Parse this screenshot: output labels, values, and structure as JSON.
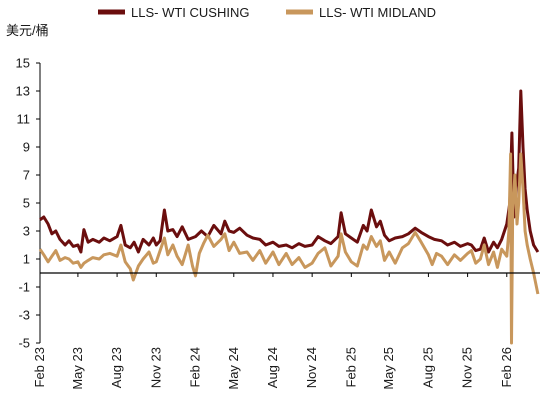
{
  "chart_data": {
    "type": "line",
    "ylabel": "美元/桶",
    "ylim": [
      -5,
      15
    ],
    "yticks": [
      -5,
      -3,
      -1,
      1,
      3,
      5,
      7,
      9,
      11,
      13,
      15
    ],
    "x_start": "2023-02-01",
    "x_end": "2026-04-20",
    "xticks": [
      {
        "label": "Feb 23",
        "date": "2023-02-01"
      },
      {
        "label": "May 23",
        "date": "2023-05-01"
      },
      {
        "label": "Aug 23",
        "date": "2023-08-01"
      },
      {
        "label": "Nov 23",
        "date": "2023-11-01"
      },
      {
        "label": "Feb 24",
        "date": "2024-02-01"
      },
      {
        "label": "May 24",
        "date": "2024-05-01"
      },
      {
        "label": "Aug 24",
        "date": "2024-08-01"
      },
      {
        "label": "Nov 24",
        "date": "2024-11-01"
      },
      {
        "label": "Feb 25",
        "date": "2025-02-01"
      },
      {
        "label": "May 25",
        "date": "2025-05-01"
      },
      {
        "label": "Aug 25",
        "date": "2025-08-01"
      },
      {
        "label": "Nov 25",
        "date": "2025-11-01"
      },
      {
        "label": "Feb 26",
        "date": "2026-02-01"
      }
    ],
    "legend_position": "top",
    "grid": false,
    "series": [
      {
        "name": "LLS- WTI CUSHING",
        "color": "#6b0e0e",
        "points": [
          [
            "2023-02-01",
            3.8
          ],
          [
            "2023-02-10",
            4.0
          ],
          [
            "2023-02-20",
            3.5
          ],
          [
            "2023-03-01",
            2.8
          ],
          [
            "2023-03-10",
            3.0
          ],
          [
            "2023-03-20",
            2.4
          ],
          [
            "2023-04-01",
            2.0
          ],
          [
            "2023-04-10",
            2.3
          ],
          [
            "2023-04-20",
            1.9
          ],
          [
            "2023-05-01",
            2.0
          ],
          [
            "2023-05-08",
            1.5
          ],
          [
            "2023-05-15",
            3.1
          ],
          [
            "2023-05-25",
            2.2
          ],
          [
            "2023-06-05",
            2.4
          ],
          [
            "2023-06-20",
            2.2
          ],
          [
            "2023-07-01",
            2.5
          ],
          [
            "2023-07-15",
            2.3
          ],
          [
            "2023-08-01",
            2.6
          ],
          [
            "2023-08-10",
            3.4
          ],
          [
            "2023-08-20",
            2.0
          ],
          [
            "2023-09-01",
            1.8
          ],
          [
            "2023-09-10",
            2.2
          ],
          [
            "2023-09-20",
            1.5
          ],
          [
            "2023-10-01",
            2.4
          ],
          [
            "2023-10-15",
            2.0
          ],
          [
            "2023-10-25",
            2.5
          ],
          [
            "2023-11-01",
            2.0
          ],
          [
            "2023-11-10",
            2.3
          ],
          [
            "2023-11-20",
            4.5
          ],
          [
            "2023-11-28",
            3.0
          ],
          [
            "2023-12-10",
            3.1
          ],
          [
            "2023-12-20",
            2.6
          ],
          [
            "2024-01-01",
            3.3
          ],
          [
            "2024-01-15",
            2.4
          ],
          [
            "2024-02-01",
            2.6
          ],
          [
            "2024-02-15",
            3.0
          ],
          [
            "2024-03-01",
            2.6
          ],
          [
            "2024-03-15",
            3.4
          ],
          [
            "2024-04-01",
            2.8
          ],
          [
            "2024-04-10",
            3.7
          ],
          [
            "2024-04-20",
            3.0
          ],
          [
            "2024-05-01",
            2.9
          ],
          [
            "2024-05-15",
            3.2
          ],
          [
            "2024-06-01",
            2.7
          ],
          [
            "2024-06-15",
            2.5
          ],
          [
            "2024-07-01",
            2.4
          ],
          [
            "2024-07-15",
            2.0
          ],
          [
            "2024-08-01",
            2.2
          ],
          [
            "2024-08-15",
            1.9
          ],
          [
            "2024-09-01",
            2.0
          ],
          [
            "2024-09-15",
            1.8
          ],
          [
            "2024-10-01",
            2.1
          ],
          [
            "2024-10-15",
            1.9
          ],
          [
            "2024-11-01",
            2.0
          ],
          [
            "2024-11-15",
            2.6
          ],
          [
            "2024-12-01",
            2.3
          ],
          [
            "2024-12-15",
            2.1
          ],
          [
            "2025-01-01",
            2.6
          ],
          [
            "2025-01-08",
            4.3
          ],
          [
            "2025-01-18",
            2.8
          ],
          [
            "2025-02-01",
            2.5
          ],
          [
            "2025-02-15",
            2.2
          ],
          [
            "2025-03-01",
            3.4
          ],
          [
            "2025-03-10",
            3.0
          ],
          [
            "2025-03-20",
            4.5
          ],
          [
            "2025-04-01",
            3.3
          ],
          [
            "2025-04-10",
            3.7
          ],
          [
            "2025-04-20",
            2.7
          ],
          [
            "2025-05-01",
            2.3
          ],
          [
            "2025-05-15",
            2.5
          ],
          [
            "2025-06-01",
            2.6
          ],
          [
            "2025-06-15",
            2.8
          ],
          [
            "2025-07-01",
            3.2
          ],
          [
            "2025-07-15",
            2.9
          ],
          [
            "2025-08-01",
            2.6
          ],
          [
            "2025-08-15",
            2.4
          ],
          [
            "2025-09-01",
            2.3
          ],
          [
            "2025-09-15",
            2.0
          ],
          [
            "2025-10-01",
            2.2
          ],
          [
            "2025-10-15",
            1.9
          ],
          [
            "2025-11-01",
            2.1
          ],
          [
            "2025-11-10",
            2.0
          ],
          [
            "2025-11-20",
            1.6
          ],
          [
            "2025-12-01",
            1.7
          ],
          [
            "2025-12-10",
            2.5
          ],
          [
            "2025-12-20",
            1.5
          ],
          [
            "2026-01-01",
            2.2
          ],
          [
            "2026-01-10",
            1.8
          ],
          [
            "2026-01-20",
            2.4
          ],
          [
            "2026-02-01",
            3.5
          ],
          [
            "2026-02-08",
            5.0
          ],
          [
            "2026-02-13",
            10.0
          ],
          [
            "2026-02-18",
            4.0
          ],
          [
            "2026-02-23",
            6.0
          ],
          [
            "2026-03-01",
            7.5
          ],
          [
            "2026-03-06",
            13.0
          ],
          [
            "2026-03-11",
            9.0
          ],
          [
            "2026-03-16",
            6.0
          ],
          [
            "2026-03-21",
            4.5
          ],
          [
            "2026-03-28",
            3.0
          ],
          [
            "2026-04-05",
            2.0
          ],
          [
            "2026-04-15",
            1.5
          ]
        ]
      },
      {
        "name": "LLS- WTI MIDLAND",
        "color": "#c8975c",
        "points": [
          [
            "2023-02-01",
            1.7
          ],
          [
            "2023-02-10",
            1.3
          ],
          [
            "2023-02-20",
            0.8
          ],
          [
            "2023-03-01",
            1.2
          ],
          [
            "2023-03-10",
            1.6
          ],
          [
            "2023-03-20",
            0.9
          ],
          [
            "2023-04-01",
            1.1
          ],
          [
            "2023-04-10",
            1.0
          ],
          [
            "2023-04-20",
            0.7
          ],
          [
            "2023-05-01",
            0.8
          ],
          [
            "2023-05-08",
            0.4
          ],
          [
            "2023-05-15",
            0.7
          ],
          [
            "2023-05-25",
            0.9
          ],
          [
            "2023-06-05",
            1.1
          ],
          [
            "2023-06-20",
            1.0
          ],
          [
            "2023-07-01",
            1.3
          ],
          [
            "2023-07-15",
            1.4
          ],
          [
            "2023-08-01",
            1.2
          ],
          [
            "2023-08-10",
            2.0
          ],
          [
            "2023-08-20",
            0.8
          ],
          [
            "2023-09-01",
            0.3
          ],
          [
            "2023-09-08",
            -0.5
          ],
          [
            "2023-09-20",
            0.5
          ],
          [
            "2023-10-01",
            1.0
          ],
          [
            "2023-10-15",
            1.5
          ],
          [
            "2023-10-25",
            0.7
          ],
          [
            "2023-11-01",
            0.8
          ],
          [
            "2023-11-10",
            1.6
          ],
          [
            "2023-11-20",
            2.5
          ],
          [
            "2023-11-28",
            1.3
          ],
          [
            "2023-12-10",
            2.0
          ],
          [
            "2023-12-20",
            1.2
          ],
          [
            "2024-01-01",
            0.6
          ],
          [
            "2024-01-15",
            2.0
          ],
          [
            "2024-01-25",
            0.5
          ],
          [
            "2024-02-01",
            -0.2
          ],
          [
            "2024-02-10",
            1.4
          ],
          [
            "2024-02-20",
            2.1
          ],
          [
            "2024-03-01",
            2.7
          ],
          [
            "2024-03-15",
            1.9
          ],
          [
            "2024-04-01",
            2.4
          ],
          [
            "2024-04-10",
            2.8
          ],
          [
            "2024-04-20",
            1.6
          ],
          [
            "2024-05-01",
            2.2
          ],
          [
            "2024-05-15",
            1.4
          ],
          [
            "2024-06-01",
            1.5
          ],
          [
            "2024-06-15",
            0.9
          ],
          [
            "2024-07-01",
            1.6
          ],
          [
            "2024-07-15",
            0.7
          ],
          [
            "2024-08-01",
            1.5
          ],
          [
            "2024-08-15",
            0.6
          ],
          [
            "2024-09-01",
            1.4
          ],
          [
            "2024-09-15",
            0.6
          ],
          [
            "2024-10-01",
            1.1
          ],
          [
            "2024-10-15",
            0.4
          ],
          [
            "2024-11-01",
            0.7
          ],
          [
            "2024-11-15",
            1.4
          ],
          [
            "2024-12-01",
            1.8
          ],
          [
            "2024-12-15",
            0.5
          ],
          [
            "2025-01-01",
            1.2
          ],
          [
            "2025-01-08",
            2.8
          ],
          [
            "2025-01-18",
            1.5
          ],
          [
            "2025-02-01",
            0.8
          ],
          [
            "2025-02-15",
            0.5
          ],
          [
            "2025-03-01",
            2.0
          ],
          [
            "2025-03-10",
            1.7
          ],
          [
            "2025-03-20",
            2.6
          ],
          [
            "2025-04-01",
            1.9
          ],
          [
            "2025-04-10",
            2.3
          ],
          [
            "2025-04-20",
            0.9
          ],
          [
            "2025-05-01",
            1.5
          ],
          [
            "2025-05-15",
            0.7
          ],
          [
            "2025-06-01",
            1.8
          ],
          [
            "2025-06-15",
            2.1
          ],
          [
            "2025-07-01",
            2.9
          ],
          [
            "2025-07-15",
            2.2
          ],
          [
            "2025-08-01",
            1.3
          ],
          [
            "2025-08-10",
            0.6
          ],
          [
            "2025-08-20",
            1.4
          ],
          [
            "2025-09-01",
            1.2
          ],
          [
            "2025-09-15",
            0.6
          ],
          [
            "2025-10-01",
            1.3
          ],
          [
            "2025-10-15",
            0.9
          ],
          [
            "2025-11-01",
            1.4
          ],
          [
            "2025-11-10",
            1.6
          ],
          [
            "2025-11-20",
            0.7
          ],
          [
            "2025-12-01",
            1.0
          ],
          [
            "2025-12-10",
            2.0
          ],
          [
            "2025-12-20",
            0.6
          ],
          [
            "2026-01-01",
            1.5
          ],
          [
            "2026-01-10",
            0.4
          ],
          [
            "2026-01-20",
            1.7
          ],
          [
            "2026-02-01",
            1.2
          ],
          [
            "2026-02-06",
            3.0
          ],
          [
            "2026-02-10",
            8.5
          ],
          [
            "2026-02-12",
            -5.0
          ],
          [
            "2026-02-15",
            4.5
          ],
          [
            "2026-02-20",
            7.0
          ],
          [
            "2026-02-25",
            3.5
          ],
          [
            "2026-03-01",
            5.0
          ],
          [
            "2026-03-06",
            8.5
          ],
          [
            "2026-03-11",
            6.0
          ],
          [
            "2026-03-16",
            3.0
          ],
          [
            "2026-03-21",
            2.0
          ],
          [
            "2026-03-28",
            1.0
          ],
          [
            "2026-04-05",
            0.0
          ],
          [
            "2026-04-15",
            -1.5
          ]
        ]
      }
    ]
  }
}
